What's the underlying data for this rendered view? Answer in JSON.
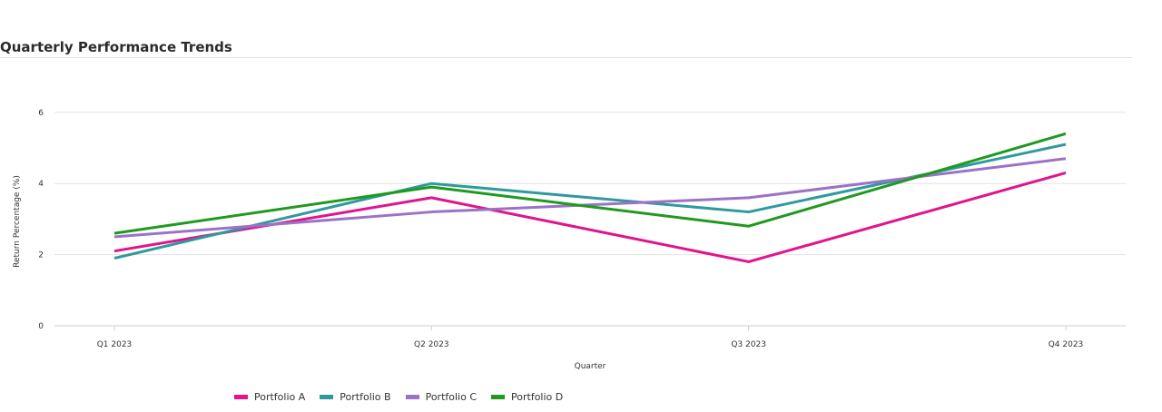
{
  "chart_data": {
    "type": "line",
    "title": "Quarterly Performance Trends",
    "xlabel": "Quarter",
    "ylabel": "Return Percentage (%)",
    "categories": [
      "Q1 2023",
      "Q2 2023",
      "Q3 2023",
      "Q4 2023"
    ],
    "yticks": [
      0,
      2,
      4,
      6
    ],
    "ylim": [
      0,
      7
    ],
    "grid": true,
    "legend_position": "bottom",
    "series": [
      {
        "name": "Portfolio A",
        "color": "#e0148c",
        "values": [
          2.1,
          3.6,
          1.8,
          4.3
        ]
      },
      {
        "name": "Portfolio B",
        "color": "#2e9a9e",
        "values": [
          1.9,
          4.0,
          3.2,
          5.1
        ]
      },
      {
        "name": "Portfolio C",
        "color": "#9b72c6",
        "values": [
          2.5,
          3.2,
          3.6,
          4.7
        ]
      },
      {
        "name": "Portfolio D",
        "color": "#1e9a1e",
        "values": [
          2.6,
          3.9,
          2.8,
          5.4
        ]
      }
    ]
  }
}
